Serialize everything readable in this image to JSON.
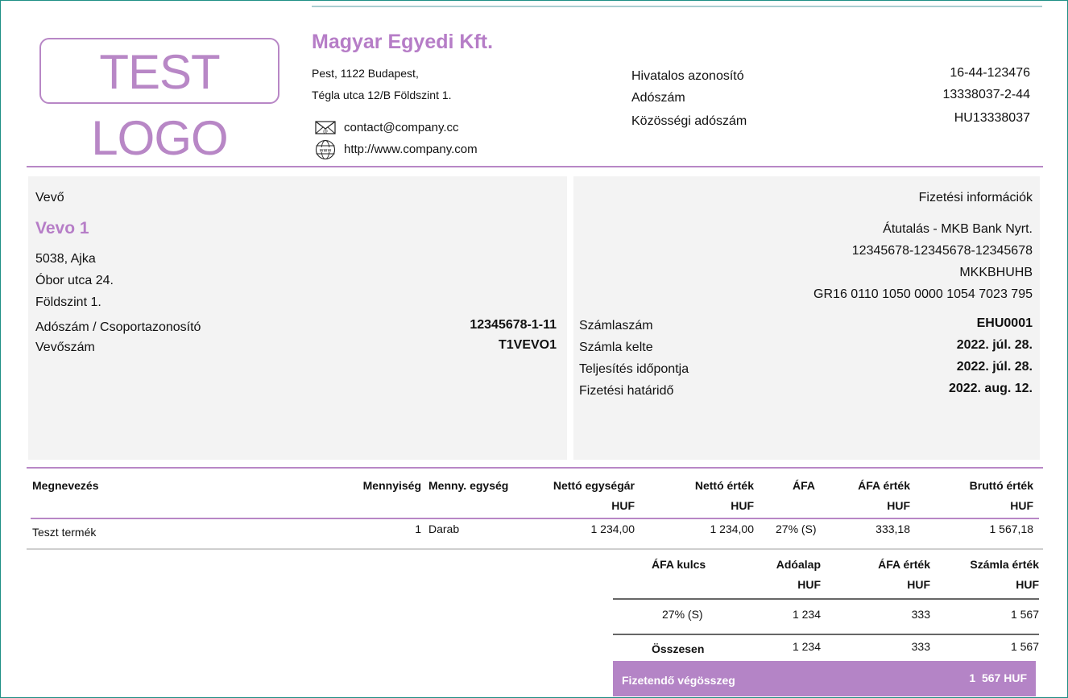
{
  "logo": {
    "text": "TEST LOGO",
    "color": "#b887c6"
  },
  "seller": {
    "name": "Magyar Egyedi Kft.",
    "address_line1": "Pest, 1122 Budapest,",
    "address_line2": "Tégla utca 12/B Földszint 1.",
    "email": "contact@company.cc",
    "website": "http://www.company.com",
    "ids": [
      {
        "label": "Hivatalos azonosító",
        "value": "16-44-123476"
      },
      {
        "label": "Adószám",
        "value": "13338037-2-44"
      },
      {
        "label": "Közösségi adószám",
        "value": "HU13338037"
      }
    ]
  },
  "buyer": {
    "section_label": "Vevő",
    "name": "Vevo 1",
    "address_lines": [
      "5038, Ajka",
      "Óbor utca 24.",
      "Földszint 1."
    ],
    "tax_label": "Adószám / Csoportazonosító",
    "tax_value": "12345678-1-11",
    "number_label": "Vevőszám",
    "number_value": "T1VEVO1"
  },
  "payment": {
    "section_label": "Fizetési információk",
    "method": "Átutalás - MKB Bank Nyrt.",
    "account": "12345678-12345678-12345678",
    "swift": "MKKBHUHB",
    "iban": "GR16 0110 1050 0000 1054 7023 795",
    "details": [
      {
        "label": "Számlaszám",
        "value": "EHU0001"
      },
      {
        "label": "Számla kelte",
        "value": "2022. júl. 28."
      },
      {
        "label": "Teljesítés időpontja",
        "value": "2022. júl. 28."
      },
      {
        "label": "Fizetési határidő",
        "value": "2022. aug. 12."
      }
    ]
  },
  "items_table": {
    "headers": {
      "name": "Megnevezés",
      "qty": "Mennyiség",
      "unit": "Menny. egység",
      "unit_price": "Nettó egységár",
      "net": "Nettó érték",
      "vat": "ÁFA",
      "vat_amount": "ÁFA érték",
      "gross": "Bruttó érték",
      "currency": "HUF"
    },
    "rows": [
      {
        "name": "Teszt termék",
        "qty": "1",
        "unit": "Darab",
        "unit_price": "1 234,00",
        "net": "1 234,00",
        "vat": "27% (S)",
        "vat_amount": "333,18",
        "gross": "1 567,18"
      }
    ]
  },
  "vat_summary": {
    "headers": {
      "rate": "ÁFA kulcs",
      "base": "Adóalap",
      "vat": "ÁFA érték",
      "total": "Számla érték",
      "currency": "HUF"
    },
    "row": {
      "rate": "27% (S)",
      "base": "1 234",
      "vat": "333",
      "total": "1 567"
    },
    "sum": {
      "label": "Összesen",
      "base": "1 234",
      "vat": "333",
      "total": "1 567"
    }
  },
  "grand_total": {
    "label": "Fizetendő végösszeg",
    "value": "1  567 HUF"
  }
}
